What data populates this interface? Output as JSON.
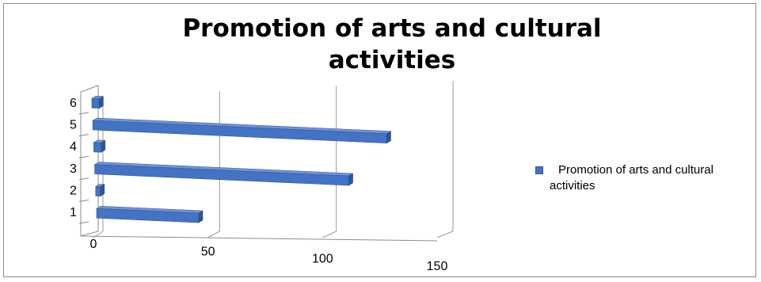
{
  "chart_data": {
    "type": "bar",
    "orientation": "horizontal",
    "style": "3d",
    "title": "Promotion of arts and cultural activities",
    "categories": [
      "1",
      "2",
      "3",
      "4",
      "5",
      "6"
    ],
    "series": [
      {
        "name": "Promotion of arts and cultural activities",
        "values": [
          41,
          0,
          102,
          3,
          118,
          3
        ]
      }
    ],
    "x_ticks": [
      "0",
      "50",
      "100",
      "150"
    ],
    "xlim": [
      0,
      150
    ],
    "xlabel": "",
    "ylabel": "",
    "grid": "vertical",
    "legend_position": "right",
    "bar_color": "#4472c4"
  }
}
